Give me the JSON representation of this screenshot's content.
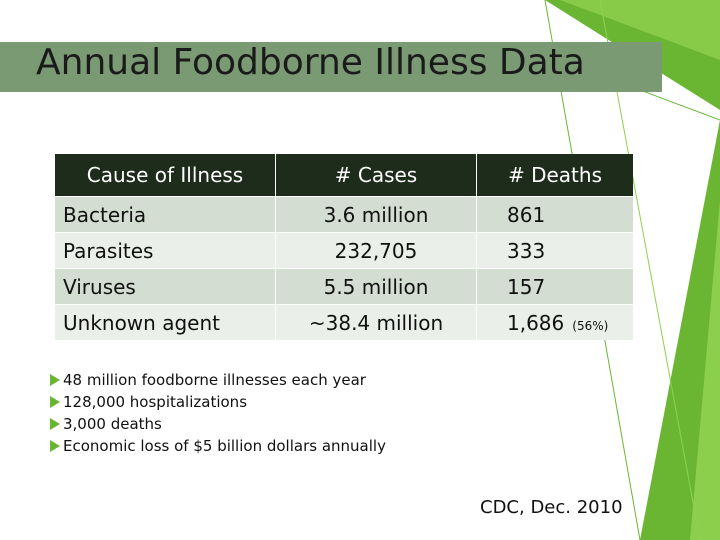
{
  "slide": {
    "title": "Annual Foodborne Illness Data",
    "accent_color": "#6ab633",
    "title_band_color": "#7a9a73",
    "header_color": "#1e2d1b"
  },
  "table": {
    "headers": [
      "Cause of Illness",
      "# Cases",
      "# Deaths"
    ],
    "rows": [
      {
        "cause": "Bacteria",
        "cases": "3.6 million",
        "deaths": "861",
        "note": ""
      },
      {
        "cause": "Parasites",
        "cases": "232,705",
        "deaths": "333",
        "note": ""
      },
      {
        "cause": "Viruses",
        "cases": "5.5 million",
        "deaths": "157",
        "note": ""
      },
      {
        "cause": "Unknown agent",
        "cases": "~38.4 million",
        "deaths": "1,686",
        "note": "(56%)"
      }
    ]
  },
  "bullets": [
    "48 million foodborne illnesses each year",
    "128,000 hospitalizations",
    "3,000 deaths",
    "Economic loss of $5 billion dollars annually"
  ],
  "source": "CDC, Dec. 2010"
}
